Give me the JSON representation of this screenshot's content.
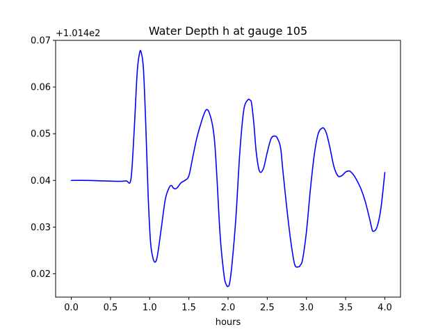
{
  "chart_data": {
    "type": "line",
    "title": "Water Depth h at gauge 105",
    "xlabel": "hours",
    "ylabel": "",
    "y_offset_label": "+1.014e2",
    "y_offset": 101.4,
    "xlim": [
      -0.2,
      4.2
    ],
    "ylim": [
      0.015,
      0.07
    ],
    "x_ticks": [
      0.0,
      0.5,
      1.0,
      1.5,
      2.0,
      2.5,
      3.0,
      3.5,
      4.0
    ],
    "x_tick_labels": [
      "0.0",
      "0.5",
      "1.0",
      "1.5",
      "2.0",
      "2.5",
      "3.0",
      "3.5",
      "4.0"
    ],
    "y_ticks": [
      0.02,
      0.03,
      0.04,
      0.05,
      0.06,
      0.07
    ],
    "y_tick_labels": [
      "0.02",
      "0.03",
      "0.04",
      "0.05",
      "0.06",
      "0.07"
    ],
    "grid": false,
    "series": [
      {
        "color": "#0000ff",
        "x": [
          0.0,
          0.2,
          0.4,
          0.6,
          0.7,
          0.76,
          0.8,
          0.84,
          0.87,
          0.89,
          0.92,
          0.95,
          0.98,
          1.01,
          1.04,
          1.07,
          1.1,
          1.15,
          1.2,
          1.25,
          1.28,
          1.3,
          1.33,
          1.36,
          1.4,
          1.45,
          1.5,
          1.55,
          1.6,
          1.65,
          1.7,
          1.73,
          1.76,
          1.8,
          1.83,
          1.86,
          1.9,
          1.95,
          1.98,
          2.0,
          2.02,
          2.05,
          2.1,
          2.15,
          2.2,
          2.25,
          2.28,
          2.3,
          2.33,
          2.36,
          2.4,
          2.45,
          2.5,
          2.55,
          2.6,
          2.63,
          2.67,
          2.7,
          2.75,
          2.8,
          2.85,
          2.9,
          2.92,
          2.95,
          3.0,
          3.05,
          3.1,
          3.15,
          3.2,
          3.23,
          3.26,
          3.3,
          3.35,
          3.4,
          3.45,
          3.5,
          3.55,
          3.6,
          3.65,
          3.7,
          3.75,
          3.8,
          3.83,
          3.85,
          3.9,
          3.95,
          4.0
        ],
        "y": [
          0.04,
          0.04,
          0.0399,
          0.0398,
          0.0399,
          0.0402,
          0.05,
          0.063,
          0.0672,
          0.0675,
          0.064,
          0.052,
          0.037,
          0.027,
          0.0235,
          0.0225,
          0.024,
          0.03,
          0.036,
          0.0385,
          0.0389,
          0.0384,
          0.0382,
          0.0386,
          0.0395,
          0.04,
          0.041,
          0.045,
          0.049,
          0.052,
          0.0545,
          0.0552,
          0.0545,
          0.052,
          0.048,
          0.04,
          0.028,
          0.0195,
          0.0176,
          0.0173,
          0.018,
          0.022,
          0.032,
          0.046,
          0.055,
          0.0572,
          0.0572,
          0.0565,
          0.052,
          0.046,
          0.042,
          0.0425,
          0.046,
          0.049,
          0.0495,
          0.049,
          0.047,
          0.042,
          0.034,
          0.027,
          0.022,
          0.0215,
          0.0218,
          0.023,
          0.029,
          0.038,
          0.0455,
          0.05,
          0.0512,
          0.051,
          0.0498,
          0.047,
          0.043,
          0.041,
          0.041,
          0.0418,
          0.042,
          0.0412,
          0.0398,
          0.038,
          0.0355,
          0.0322,
          0.03,
          0.0291,
          0.03,
          0.034,
          0.0417
        ]
      }
    ]
  }
}
